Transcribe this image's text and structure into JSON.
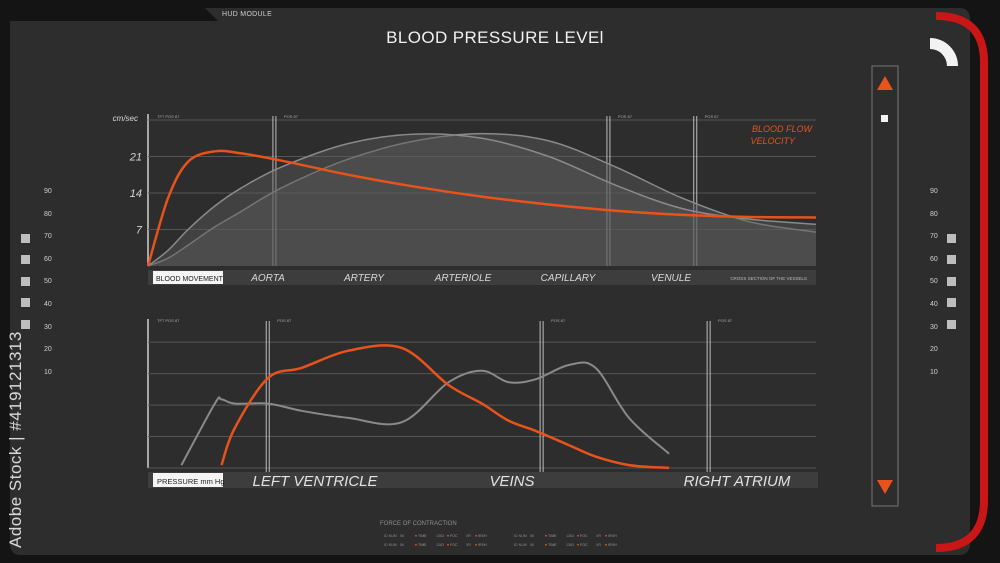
{
  "header": {
    "module_label": "HUD MODULE",
    "title": "BLOOD PRESSURE LEVEl"
  },
  "left_scale": [
    "90",
    "80",
    "70",
    "60",
    "50",
    "40",
    "30",
    "20",
    "10"
  ],
  "right_scale": [
    "90",
    "80",
    "70",
    "60",
    "50",
    "40",
    "30",
    "20",
    "10"
  ],
  "stamp": "Adobe Stock | #419121313",
  "colors": {
    "accent": "#e8531c",
    "curve_gray": "#8a8a8a",
    "frame_red": "#c91616",
    "background": "#141414",
    "panel": "#2d2d2d"
  },
  "icons": {
    "up": "triangle-up-icon",
    "down": "triangle-down-icon",
    "toggle": "square-icon",
    "corner": "quarter-arc-icon"
  },
  "footer": {
    "title": "FORCE OF CONTRACTION",
    "rows": [
      [
        "ID NUM",
        "56",
        "TIME",
        "1363",
        "FOC",
        "XR",
        "IRXH"
      ],
      [
        "ID NUM",
        "56",
        "TIME",
        "1363",
        "FOC",
        "XR",
        "IRXH"
      ]
    ]
  },
  "chart_data": [
    {
      "type": "area",
      "ylabel": "cm/sec",
      "ylim": [
        0,
        28
      ],
      "yticks": [
        7,
        14,
        21
      ],
      "annotation": "BLOOD FLOW VELOCITY",
      "category_label": "BLOOD MOVEMENT",
      "categories": [
        "AORTA",
        "ARTERY",
        "ARTERIOLE",
        "CAPILLARY",
        "VENULE"
      ],
      "axis_note": "CROSS SECTION OF THE VESSELS",
      "markers": [
        {
          "label": "TFT POS 87",
          "x": 0
        },
        {
          "label": "POS 87",
          "x": 0.19
        },
        {
          "label": "POS 87",
          "x": 0.69
        },
        {
          "label": "POS 87",
          "x": 0.82
        }
      ],
      "x": [
        0,
        0.03,
        0.06,
        0.1,
        0.14,
        0.2,
        0.3,
        0.4,
        0.5,
        0.6,
        0.7,
        0.8,
        0.9,
        1.0
      ],
      "series": [
        {
          "values": [
            0,
            13,
            20,
            22,
            21.6,
            20.2,
            17.5,
            15.2,
            13.3,
            11.8,
            10.6,
            9.8,
            9.4,
            9.3
          ]
        },
        {
          "values": [
            0,
            3,
            7,
            11.5,
            15,
            19,
            23.5,
            25.3,
            24.5,
            21,
            15.5,
            11,
            9,
            8
          ]
        },
        {
          "values": [
            0,
            1.5,
            4,
            7.5,
            10.5,
            15,
            20.5,
            24,
            25.4,
            24,
            19,
            13,
            8.5,
            6.5
          ]
        }
      ]
    },
    {
      "type": "line",
      "category_label": "PRESSURE mm Hg",
      "categories": [
        "LEFT VENTRICLE",
        "VEINS",
        "RIGHT ATRIUM"
      ],
      "ylim": [
        0,
        100
      ],
      "markers": [
        {
          "label": "TFT POS 87",
          "x": 0
        },
        {
          "label": "POS 87",
          "x": 0.18
        },
        {
          "label": "POS 87",
          "x": 0.59
        },
        {
          "label": "POS 87",
          "x": 0.84
        }
      ],
      "x": [
        0,
        0.05,
        0.1,
        0.11,
        0.13,
        0.18,
        0.23,
        0.3,
        0.38,
        0.45,
        0.5,
        0.54,
        0.58,
        0.63,
        0.67,
        0.72,
        0.78
      ],
      "series": [
        {
          "values": [
            null,
            null,
            null,
            2,
            28,
            63,
            70,
            82,
            84,
            58,
            45,
            33,
            26,
            16,
            8,
            2,
            0
          ]
        },
        {
          "values": [
            null,
            2,
            45,
            48,
            45,
            45,
            40,
            35,
            32,
            60,
            68,
            60,
            62,
            72,
            70,
            35,
            10
          ]
        }
      ]
    }
  ]
}
